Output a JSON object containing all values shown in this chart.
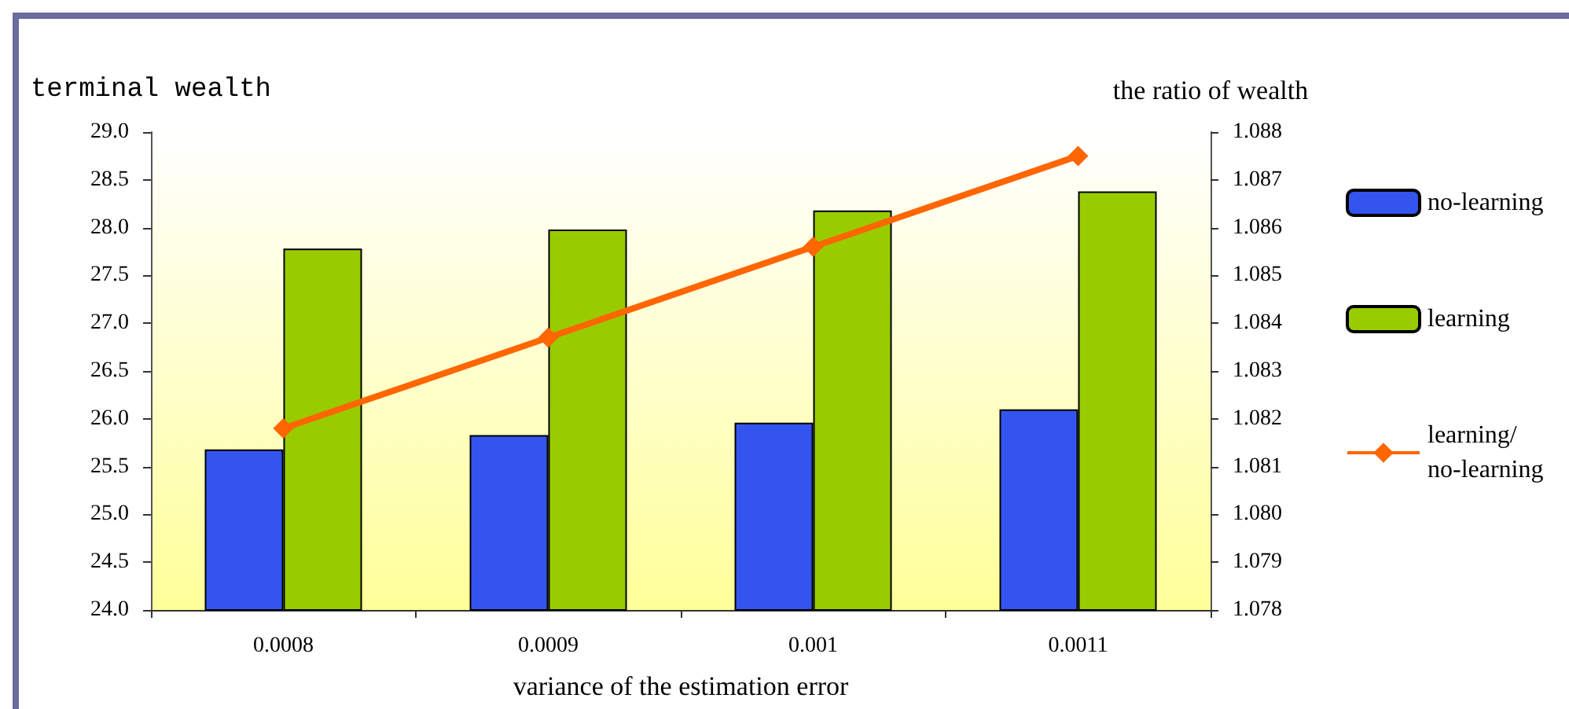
{
  "chart_data": {
    "type": "bar",
    "categories": [
      "0.0008",
      "0.0009",
      "0.001",
      "0.0011"
    ],
    "xlabel": "variance of the estimation error",
    "ylabel": "terminal wealth",
    "y2label": "the ratio of wealth",
    "series": [
      {
        "name": "no-learning",
        "color": "#3355ee",
        "values": [
          25.68,
          25.83,
          25.96,
          26.1
        ]
      },
      {
        "name": "learning",
        "color": "#99cc00",
        "values": [
          27.78,
          27.98,
          28.18,
          28.38
        ]
      },
      {
        "name": "learning/no-learning",
        "type": "line",
        "axis": "y2",
        "color": "#ff6600",
        "marker": "diamond",
        "values": [
          1.0818,
          1.0837,
          1.0856,
          1.0875
        ]
      }
    ],
    "ylim": [
      24,
      29
    ],
    "yticks": [
      {
        "value": 24,
        "label": "24.0"
      },
      {
        "value": 24.5,
        "label": "24.5"
      },
      {
        "value": 25,
        "label": "25.0"
      },
      {
        "value": 25.5,
        "label": "25.5"
      },
      {
        "value": 26,
        "label": "26.0"
      },
      {
        "value": 26.5,
        "label": "26.5"
      },
      {
        "value": 27,
        "label": "27.0"
      },
      {
        "value": 27.5,
        "label": "27.5"
      },
      {
        "value": 28,
        "label": "28.0"
      },
      {
        "value": 28.5,
        "label": "28.5"
      },
      {
        "value": 29,
        "label": "29.0"
      }
    ],
    "y2lim": [
      1.078,
      1.088
    ],
    "y2ticks": [
      1.078,
      1.079,
      {
        "value": 1.08,
        "label": "1.080"
      },
      1.081,
      1.082,
      1.083,
      1.084,
      1.085,
      1.086,
      1.087,
      1.088
    ],
    "grid": false,
    "legend": "right"
  }
}
